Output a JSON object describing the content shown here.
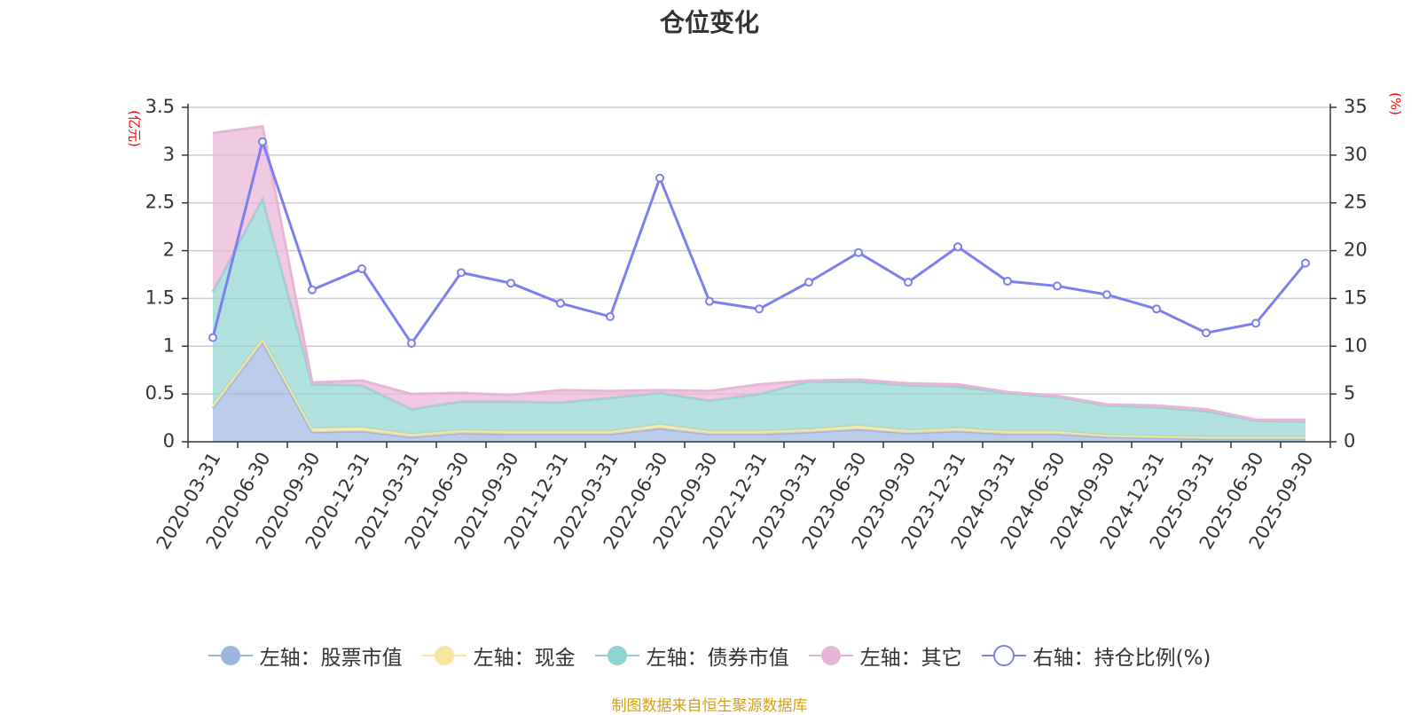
{
  "title": "仓位变化",
  "footer": "制图数据来自恒生聚源数据库",
  "left_unit": "(亿元)",
  "right_unit": "(%)",
  "colors": {
    "stock": "#9db6e0",
    "cash": "#f7e5a0",
    "bond": "#8fd4d2",
    "other": "#e8b4d6",
    "ratio": "#7b7ff0"
  },
  "chart_data": {
    "type": "area",
    "categories": [
      "2020-03-31",
      "2020-06-30",
      "2020-09-30",
      "2020-12-31",
      "2021-03-31",
      "2021-06-30",
      "2021-09-30",
      "2021-12-31",
      "2022-03-31",
      "2022-06-30",
      "2022-09-30",
      "2022-12-31",
      "2023-03-31",
      "2023-06-30",
      "2023-09-30",
      "2023-12-31",
      "2024-03-31",
      "2024-06-30",
      "2024-09-30",
      "2024-12-31",
      "2025-03-31",
      "2025-06-30",
      "2025-09-30"
    ],
    "left_axis": {
      "ylim": [
        0,
        3.5
      ],
      "ticks": [
        "0",
        "0.5",
        "1",
        "1.5",
        "2",
        "2.5",
        "3",
        "3.5"
      ]
    },
    "right_axis": {
      "ylim": [
        0,
        35
      ],
      "ticks": [
        "0",
        "5",
        "10",
        "15",
        "20",
        "25",
        "30",
        "35"
      ]
    },
    "stacked_series": [
      {
        "name": "左轴：股票市值",
        "key": "stock",
        "values": [
          0.35,
          1.04,
          0.1,
          0.11,
          0.05,
          0.09,
          0.08,
          0.08,
          0.08,
          0.14,
          0.08,
          0.08,
          0.1,
          0.13,
          0.09,
          0.11,
          0.08,
          0.08,
          0.05,
          0.04,
          0.03,
          0.03,
          0.03
        ]
      },
      {
        "name": "左轴：现金",
        "key": "cash",
        "values": [
          0.04,
          0.04,
          0.04,
          0.04,
          0.03,
          0.03,
          0.03,
          0.03,
          0.03,
          0.04,
          0.03,
          0.03,
          0.03,
          0.04,
          0.03,
          0.03,
          0.03,
          0.03,
          0.02,
          0.02,
          0.02,
          0.02,
          0.02
        ]
      },
      {
        "name": "左轴：债券市值",
        "key": "bond",
        "values": [
          1.18,
          1.46,
          0.46,
          0.44,
          0.26,
          0.3,
          0.31,
          0.3,
          0.35,
          0.33,
          0.32,
          0.39,
          0.5,
          0.46,
          0.47,
          0.44,
          0.4,
          0.36,
          0.31,
          0.3,
          0.27,
          0.17,
          0.16
        ]
      },
      {
        "name": "左轴：其它",
        "key": "other",
        "values": [
          1.66,
          0.76,
          0.02,
          0.05,
          0.16,
          0.09,
          0.07,
          0.13,
          0.07,
          0.03,
          0.1,
          0.1,
          0.01,
          0.02,
          0.02,
          0.02,
          0.01,
          0.01,
          0.01,
          0.02,
          0.02,
          0.01,
          0.02
        ]
      }
    ],
    "line_series": {
      "name": "右轴：持仓比例(%)",
      "key": "ratio",
      "values": [
        10.9,
        31.4,
        15.9,
        18.1,
        10.3,
        17.7,
        16.6,
        14.5,
        13.1,
        27.6,
        14.7,
        13.9,
        16.7,
        19.8,
        16.7,
        20.4,
        16.8,
        16.3,
        15.4,
        13.9,
        11.4,
        12.4,
        18.7
      ]
    }
  }
}
